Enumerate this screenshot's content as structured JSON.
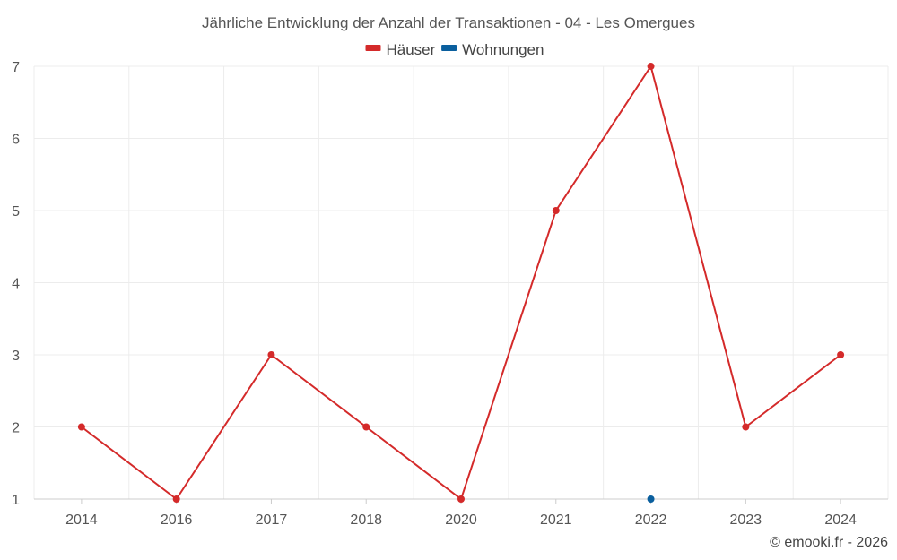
{
  "chart_data": {
    "type": "line",
    "title": "Jährliche Entwicklung der Anzahl der Transaktionen - 04 - Les Omergues",
    "categories": [
      "2014",
      "2016",
      "2017",
      "2018",
      "2020",
      "2021",
      "2022",
      "2023",
      "2024"
    ],
    "ylim": [
      1,
      7
    ],
    "yticks": [
      1,
      2,
      3,
      4,
      5,
      6,
      7
    ],
    "grid": true,
    "legend_position": "top-center",
    "series": [
      {
        "name": "Häuser",
        "color": "#d42a2a",
        "values": [
          2,
          1,
          3,
          2,
          1,
          5,
          7,
          2,
          3
        ]
      },
      {
        "name": "Wohnungen",
        "color": "#0a5f9e",
        "values": [
          null,
          null,
          null,
          null,
          null,
          null,
          1,
          null,
          null
        ]
      }
    ]
  },
  "credit": "© emooki.fr - 2026"
}
